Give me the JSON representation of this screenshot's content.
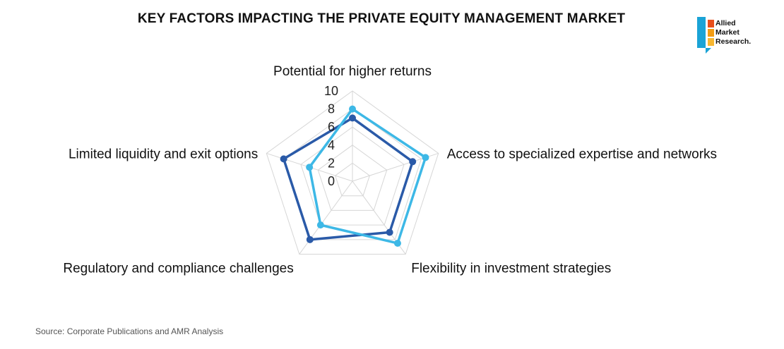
{
  "title": "KEY FACTORS IMPACTING THE PRIVATE EQUITY MANAGEMENT MARKET",
  "source": "Source: Corporate Publications and AMR Analysis",
  "logo": {
    "lines": [
      "Allied",
      "Market",
      "Research."
    ],
    "colors": [
      "#e84e1b",
      "#f39c12",
      "#f7b731"
    ],
    "frame_color": "#1aa3d6"
  },
  "chart_data": {
    "type": "radar",
    "title": "KEY FACTORS IMPACTING THE PRIVATE EQUITY MANAGEMENT MARKET",
    "categories": [
      "Potential for higher returns",
      "Access to specialized expertise and networks",
      "Flexibility in investment strategies",
      "Regulatory and compliance challenges",
      "Limited liquidity and exit options"
    ],
    "range": [
      0,
      10
    ],
    "ticks": [
      "0",
      "2",
      "4",
      "6",
      "8",
      "10"
    ],
    "grid": true,
    "series": [
      {
        "color": "#2a5aa8",
        "values": [
          7,
          7,
          7,
          8,
          8
        ]
      },
      {
        "color": "#3db8e6",
        "values": [
          8,
          8.5,
          8.5,
          6,
          5
        ]
      }
    ]
  }
}
